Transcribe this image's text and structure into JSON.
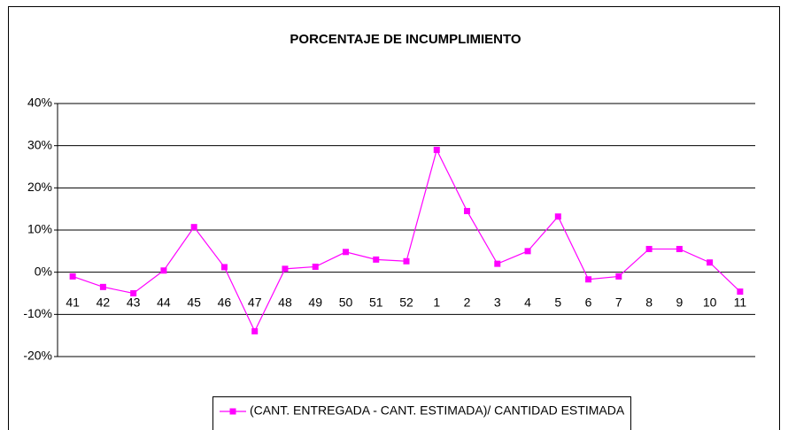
{
  "chart_data": {
    "type": "line",
    "title": "PORCENTAJE DE INCUMPLIMIENTO",
    "categories": [
      "41",
      "42",
      "43",
      "44",
      "45",
      "46",
      "47",
      "48",
      "49",
      "50",
      "51",
      "52",
      "1",
      "2",
      "3",
      "4",
      "5",
      "6",
      "7",
      "8",
      "9",
      "10",
      "11"
    ],
    "series": [
      {
        "name": "(CANT. ENTREGADA - CANT. ESTIMADA)/ CANTIDAD ESTIMADA",
        "color": "#ff00ff",
        "values": [
          -1,
          -3.5,
          -5,
          0.4,
          10.7,
          1.2,
          -14,
          0.8,
          1.3,
          4.8,
          3,
          2.6,
          29,
          14.5,
          2,
          5,
          13.2,
          -1.7,
          -1,
          5.5,
          5.5,
          2.3,
          -4.6
        ]
      }
    ],
    "ylim": [
      -20,
      40
    ],
    "yticks": [
      {
        "value": -20,
        "label": "-20%"
      },
      {
        "value": -10,
        "label": "-10%"
      },
      {
        "value": 0,
        "label": "0%"
      },
      {
        "value": 10,
        "label": "10%"
      },
      {
        "value": 20,
        "label": "20%"
      },
      {
        "value": 30,
        "label": "30%"
      },
      {
        "value": 40,
        "label": "40%"
      }
    ],
    "grid": true,
    "legend": "bottom"
  }
}
